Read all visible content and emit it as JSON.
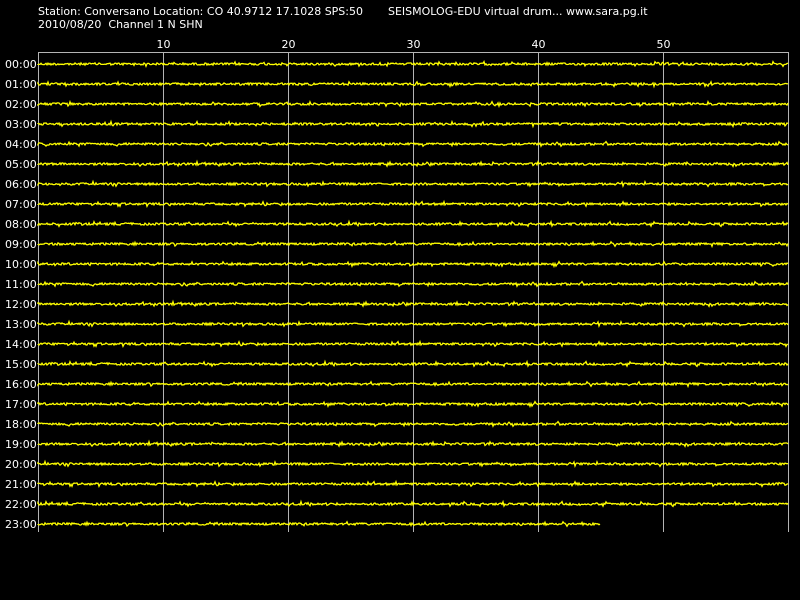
{
  "header": {
    "station_line": "Station: Conversano Location: CO 40.9712 17.1028 SPS:50",
    "program_line": "SEISMOLOG-EDU virtual drum... www.sara.pg.it",
    "date_line": "2010/08/20  Channel 1 N SHN"
  },
  "colors": {
    "background": "#000000",
    "grid": "#b4b4b4",
    "trace": "#ffff00",
    "text": "#ffffff"
  },
  "chart_data": {
    "type": "line",
    "title": "SEISMOLOG-EDU virtual drum",
    "xlabel": "",
    "ylabel": "",
    "x_range": [
      0,
      60
    ],
    "x_ticks": [
      "10",
      "20",
      "30",
      "40",
      "50"
    ],
    "grid": true,
    "hour_labels": [
      "00:00",
      "01:00",
      "02:00",
      "03:00",
      "04:00",
      "05:00",
      "06:00",
      "07:00",
      "08:00",
      "09:00",
      "10:00",
      "11:00",
      "12:00",
      "13:00",
      "14:00",
      "15:00",
      "16:00",
      "17:00",
      "18:00",
      "19:00",
      "20:00",
      "21:00",
      "22:00",
      "23:00"
    ],
    "trace_end_minutes": [
      60,
      60,
      60,
      60,
      60,
      60,
      60,
      60,
      60,
      60,
      60,
      60,
      60,
      60,
      60,
      60,
      60,
      60,
      60,
      60,
      60,
      60,
      60,
      45
    ]
  }
}
